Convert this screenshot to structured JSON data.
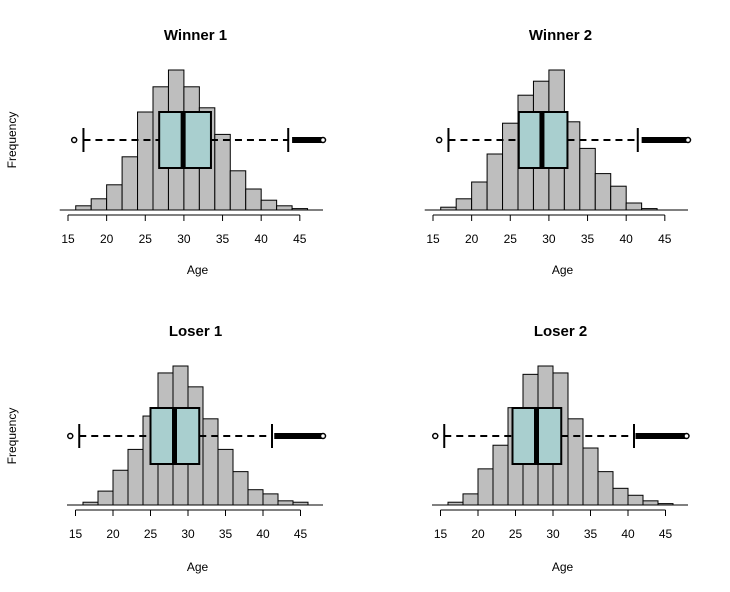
{
  "chart_data": [
    {
      "type": "histogram",
      "title": "Winner 1",
      "xlabel": "Age",
      "ylabel": "Frequency",
      "xlim": [
        15,
        48
      ],
      "xticks": [
        "15",
        "20",
        "25",
        "30",
        "35",
        "40",
        "45"
      ],
      "bins": [
        {
          "x0": 16,
          "x1": 18,
          "count": 3
        },
        {
          "x0": 18,
          "x1": 20,
          "count": 8
        },
        {
          "x0": 20,
          "x1": 22,
          "count": 18
        },
        {
          "x0": 22,
          "x1": 24,
          "count": 38
        },
        {
          "x0": 24,
          "x1": 26,
          "count": 70
        },
        {
          "x0": 26,
          "x1": 28,
          "count": 88
        },
        {
          "x0": 28,
          "x1": 30,
          "count": 100
        },
        {
          "x0": 30,
          "x1": 32,
          "count": 88
        },
        {
          "x0": 32,
          "x1": 34,
          "count": 73
        },
        {
          "x0": 34,
          "x1": 36,
          "count": 54
        },
        {
          "x0": 36,
          "x1": 38,
          "count": 28
        },
        {
          "x0": 38,
          "x1": 40,
          "count": 15
        },
        {
          "x0": 40,
          "x1": 42,
          "count": 7
        },
        {
          "x0": 42,
          "x1": 44,
          "count": 3
        },
        {
          "x0": 44,
          "x1": 46,
          "count": 1
        }
      ],
      "boxplot": {
        "whisker_low": 17,
        "q1": 26.8,
        "median": 29.9,
        "q3": 33.5,
        "whisker_high": 43.5,
        "outliers_low": [
          15.8
        ],
        "outliers_high_from": 44,
        "outliers_high_to": 48
      }
    },
    {
      "type": "histogram",
      "title": "Winner 2",
      "xlabel": "Age",
      "ylabel": "",
      "xlim": [
        15,
        48
      ],
      "xticks": [
        "15",
        "20",
        "25",
        "30",
        "35",
        "40",
        "45"
      ],
      "bins": [
        {
          "x0": 16,
          "x1": 18,
          "count": 2
        },
        {
          "x0": 18,
          "x1": 20,
          "count": 8
        },
        {
          "x0": 20,
          "x1": 22,
          "count": 20
        },
        {
          "x0": 22,
          "x1": 24,
          "count": 40
        },
        {
          "x0": 24,
          "x1": 26,
          "count": 62
        },
        {
          "x0": 26,
          "x1": 28,
          "count": 82
        },
        {
          "x0": 28,
          "x1": 30,
          "count": 92
        },
        {
          "x0": 30,
          "x1": 32,
          "count": 100
        },
        {
          "x0": 32,
          "x1": 34,
          "count": 63
        },
        {
          "x0": 34,
          "x1": 36,
          "count": 44
        },
        {
          "x0": 36,
          "x1": 38,
          "count": 26
        },
        {
          "x0": 38,
          "x1": 40,
          "count": 17
        },
        {
          "x0": 40,
          "x1": 42,
          "count": 5
        },
        {
          "x0": 42,
          "x1": 44,
          "count": 1
        }
      ],
      "boxplot": {
        "whisker_low": 17,
        "q1": 26.1,
        "median": 29.1,
        "q3": 32.4,
        "whisker_high": 41.5,
        "outliers_low": [
          15.8
        ],
        "outliers_high_from": 42,
        "outliers_high_to": 48
      }
    },
    {
      "type": "histogram",
      "title": "Loser 1",
      "xlabel": "Age",
      "ylabel": "Frequency",
      "xlim": [
        14,
        48
      ],
      "xticks": [
        "15",
        "20",
        "25",
        "30",
        "35",
        "40",
        "45"
      ],
      "bins": [
        {
          "x0": 16,
          "x1": 18,
          "count": 2
        },
        {
          "x0": 18,
          "x1": 20,
          "count": 10
        },
        {
          "x0": 20,
          "x1": 22,
          "count": 25
        },
        {
          "x0": 22,
          "x1": 24,
          "count": 40
        },
        {
          "x0": 24,
          "x1": 26,
          "count": 64
        },
        {
          "x0": 26,
          "x1": 28,
          "count": 95
        },
        {
          "x0": 28,
          "x1": 30,
          "count": 100
        },
        {
          "x0": 30,
          "x1": 32,
          "count": 85
        },
        {
          "x0": 32,
          "x1": 34,
          "count": 62
        },
        {
          "x0": 34,
          "x1": 36,
          "count": 40
        },
        {
          "x0": 36,
          "x1": 38,
          "count": 24
        },
        {
          "x0": 38,
          "x1": 40,
          "count": 11
        },
        {
          "x0": 40,
          "x1": 42,
          "count": 8
        },
        {
          "x0": 42,
          "x1": 44,
          "count": 3
        },
        {
          "x0": 44,
          "x1": 46,
          "count": 2
        }
      ],
      "boxplot": {
        "whisker_low": 15.5,
        "q1": 25,
        "median": 28.2,
        "q3": 31.5,
        "whisker_high": 41.2,
        "outliers_low": [
          14.3
        ],
        "outliers_high_from": 41.5,
        "outliers_high_to": 48
      }
    },
    {
      "type": "histogram",
      "title": "Loser 2",
      "xlabel": "Age",
      "ylabel": "",
      "xlim": [
        14,
        48
      ],
      "xticks": [
        "15",
        "20",
        "25",
        "30",
        "35",
        "40",
        "45"
      ],
      "bins": [
        {
          "x0": 16,
          "x1": 18,
          "count": 2
        },
        {
          "x0": 18,
          "x1": 20,
          "count": 8
        },
        {
          "x0": 20,
          "x1": 22,
          "count": 26
        },
        {
          "x0": 22,
          "x1": 24,
          "count": 43
        },
        {
          "x0": 24,
          "x1": 26,
          "count": 70
        },
        {
          "x0": 26,
          "x1": 28,
          "count": 94
        },
        {
          "x0": 28,
          "x1": 30,
          "count": 100
        },
        {
          "x0": 30,
          "x1": 32,
          "count": 95
        },
        {
          "x0": 32,
          "x1": 34,
          "count": 62
        },
        {
          "x0": 34,
          "x1": 36,
          "count": 41
        },
        {
          "x0": 36,
          "x1": 38,
          "count": 24
        },
        {
          "x0": 38,
          "x1": 40,
          "count": 12
        },
        {
          "x0": 40,
          "x1": 42,
          "count": 7
        },
        {
          "x0": 42,
          "x1": 44,
          "count": 3
        },
        {
          "x0": 44,
          "x1": 46,
          "count": 1
        }
      ],
      "boxplot": {
        "whisker_low": 15.5,
        "q1": 24.6,
        "median": 27.8,
        "q3": 31.1,
        "whisker_high": 40.8,
        "outliers_low": [
          14.3
        ],
        "outliers_high_from": 41,
        "outliers_high_to": 47.8
      }
    }
  ],
  "colors": {
    "bar_fill": "#bebebe",
    "box_fill": "#a9cfcf",
    "stroke": "#000000"
  }
}
